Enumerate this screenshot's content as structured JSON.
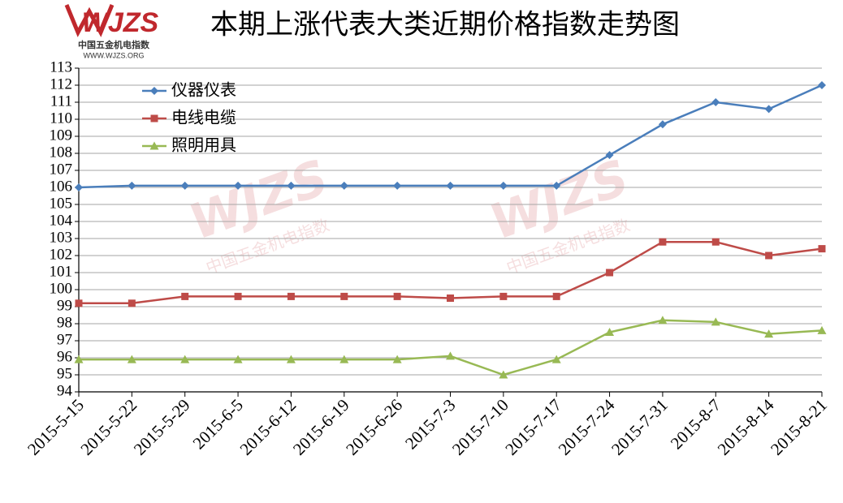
{
  "logo": {
    "mark": "WJZS",
    "name": "中国五金机电指数",
    "url": "WWW.WJZS.ORG"
  },
  "chart_data": {
    "type": "line",
    "title": "本期上涨代表大类近期价格指数走势图",
    "categories": [
      "2015-5-15",
      "2015-5-22",
      "2015-5-29",
      "2015-6-5",
      "2015-6-12",
      "2015-6-19",
      "2015-6-26",
      "2015-7-3",
      "2015-7-10",
      "2015-7-17",
      "2015-7-24",
      "2015-7-31",
      "2015-8-7",
      "2015-8-14",
      "2015-8-21"
    ],
    "series": [
      {
        "name": "仪器仪表",
        "color": "#4a7ebb",
        "marker": "diamond",
        "values": [
          106.0,
          106.1,
          106.1,
          106.1,
          106.1,
          106.1,
          106.1,
          106.1,
          106.1,
          106.1,
          107.9,
          109.7,
          111.0,
          110.6,
          112.0
        ]
      },
      {
        "name": "电线电缆",
        "color": "#be4b48",
        "marker": "square",
        "values": [
          99.2,
          99.2,
          99.6,
          99.6,
          99.6,
          99.6,
          99.6,
          99.5,
          99.6,
          99.6,
          101.0,
          102.8,
          102.8,
          102.0,
          102.4
        ]
      },
      {
        "name": "照明用具",
        "color": "#98b954",
        "marker": "triangle",
        "values": [
          95.9,
          95.9,
          95.9,
          95.9,
          95.9,
          95.9,
          95.9,
          96.1,
          95.0,
          95.9,
          97.5,
          98.2,
          98.1,
          97.4,
          97.6
        ]
      }
    ],
    "ylim": [
      94,
      113
    ],
    "yticks": [
      94,
      95,
      96,
      97,
      98,
      99,
      100,
      101,
      102,
      103,
      104,
      105,
      106,
      107,
      108,
      109,
      110,
      111,
      112,
      113
    ],
    "grid": true,
    "legend": "top-left"
  }
}
